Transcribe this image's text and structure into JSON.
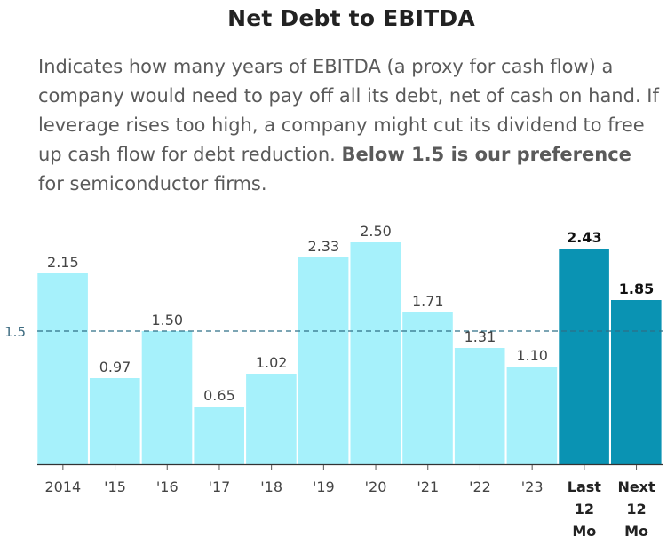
{
  "title": "Net Debt to EBITDA",
  "subtitle": {
    "text_a": "Indicates how many years of EBITDA (a proxy for cash flow) a company would need to pay off all its debt, net of cash on hand. If leverage rises too high, a company might cut its dividend to free up cash flow for debt reduction. ",
    "text_bold": "Below 1.5 is our preference",
    "text_b": " for semiconductor firms."
  },
  "colors": {
    "bar_light": "#a6f1fb",
    "bar_dark": "#0a93b3",
    "reference_line": "#2f6f86"
  },
  "chart_data": {
    "type": "bar",
    "categories": [
      "2014",
      "'15",
      "'16",
      "'17",
      "'18",
      "'19",
      "'20",
      "'21",
      "'22",
      "'23",
      "Last 12 Mo",
      "Next 12 Mo"
    ],
    "category_lines": [
      [
        "2014"
      ],
      [
        "'15"
      ],
      [
        "'16"
      ],
      [
        "'17"
      ],
      [
        "'18"
      ],
      [
        "'19"
      ],
      [
        "'20"
      ],
      [
        "'21"
      ],
      [
        "'22"
      ],
      [
        "'23"
      ],
      [
        "Last",
        "12",
        "Mo"
      ],
      [
        "Next",
        "12",
        "Mo"
      ]
    ],
    "values": [
      2.15,
      0.97,
      1.5,
      0.65,
      1.02,
      2.33,
      2.5,
      1.71,
      1.31,
      1.1,
      2.43,
      1.85
    ],
    "value_labels": [
      "2.15",
      "0.97",
      "1.50",
      "0.65",
      "1.02",
      "2.33",
      "2.50",
      "1.71",
      "1.31",
      "1.10",
      "2.43",
      "1.85"
    ],
    "highlighted": [
      false,
      false,
      false,
      false,
      false,
      false,
      false,
      false,
      false,
      false,
      true,
      true
    ],
    "reference_line": {
      "value": 1.5,
      "label": "1.5"
    },
    "title": "Net Debt to EBITDA",
    "xlabel": "",
    "ylabel": "",
    "ylim": [
      0,
      2.6
    ],
    "grid": false,
    "legend": "none"
  }
}
